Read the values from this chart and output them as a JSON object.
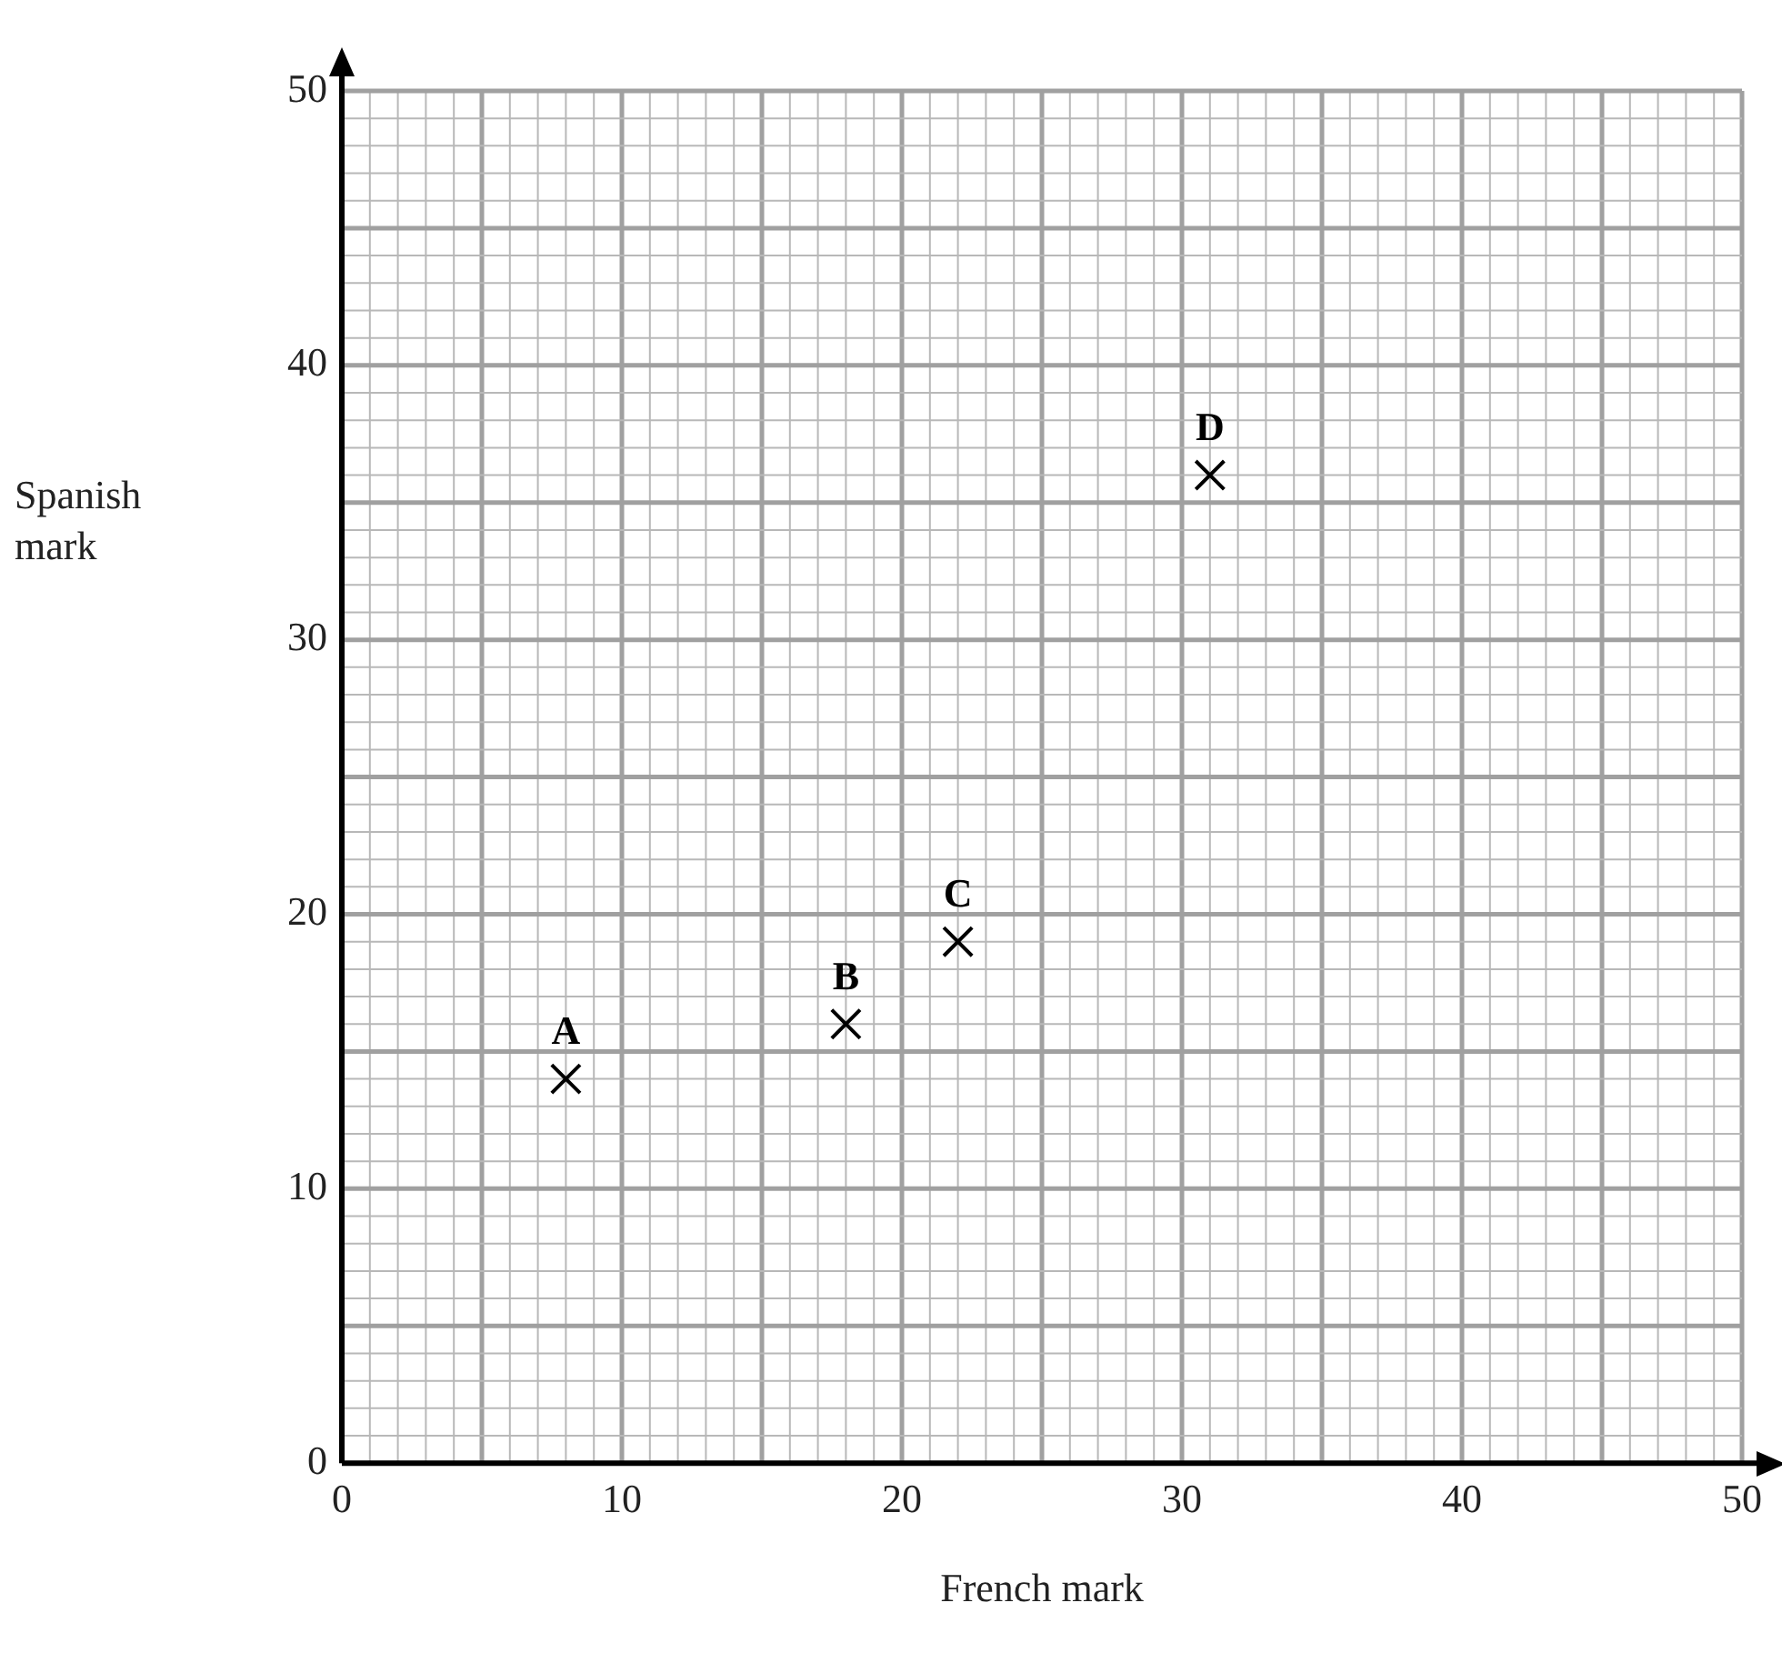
{
  "chart_data": {
    "type": "scatter",
    "xlabel": "French mark",
    "ylabel": "Spanish mark",
    "x": [
      8,
      18,
      22,
      31
    ],
    "series": [
      {
        "color": "#000000",
        "values": [
          14,
          16,
          19,
          36
        ]
      }
    ],
    "annotations": [
      {
        "text": "A",
        "x": 8,
        "y": 14
      },
      {
        "text": "B",
        "x": 18,
        "y": 16
      },
      {
        "text": "C",
        "x": 22,
        "y": 19
      },
      {
        "text": "D",
        "x": 31,
        "y": 36
      }
    ],
    "xlim": [
      0,
      50
    ],
    "ylim": [
      0,
      50
    ],
    "xticks": [
      0,
      10,
      20,
      30,
      40,
      50
    ],
    "yticks": [
      0,
      10,
      20,
      30,
      40,
      50
    ],
    "grid": true,
    "marker": "cross",
    "legend": false
  }
}
